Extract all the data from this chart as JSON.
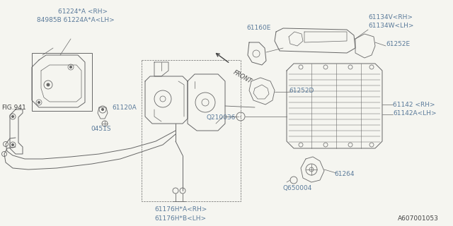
{
  "bg_color": "#f5f5f0",
  "line_color": "#666666",
  "text_color": "#5a7a9a",
  "dark_text": "#444444",
  "footer": "A607001053",
  "labels": {
    "top_left_1": "61224*A <RH>",
    "top_left_2": "84985B 61224A*A<LH>",
    "fig941": "FIG.941",
    "l61120A": "61120A",
    "l0451S": "0451S",
    "l61160E": "61160E",
    "l61134V": "61134V<RH>",
    "l61134W": "61134W<LH>",
    "l61252E": "61252E",
    "l61252D": "61252D",
    "lQ210036": "Q210036",
    "l61142RH": "61142 <RH>",
    "l61142LH": "61142A<LH>",
    "l61264": "61264",
    "lQ650004": "Q650004",
    "l61176A": "61176H*A<RH>",
    "l61176B": "61176H*B<LH>",
    "front": "FRONT"
  }
}
